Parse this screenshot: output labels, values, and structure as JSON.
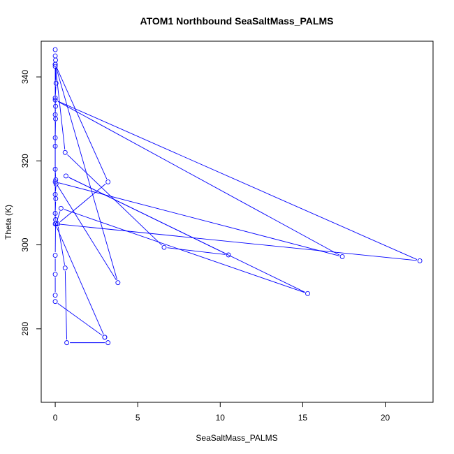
{
  "chart_data": {
    "type": "line",
    "title": "ATOM1 Northbound SeaSaltMass_PALMS",
    "xlabel": "SeaSaltMass_PALMS",
    "ylabel": "Theta (K)",
    "xlim": [
      -0.85,
      22.9
    ],
    "ylim": [
      262.5,
      348.5
    ],
    "x_ticks": [
      0,
      5,
      10,
      15,
      20
    ],
    "y_ticks": [
      280,
      300,
      320,
      340
    ],
    "grid": false,
    "legend": "none",
    "series_color": "#0000ff",
    "series": [
      {
        "marker": "open-circle",
        "points": [
          [
            0.0,
            346.5
          ],
          [
            0.0,
            345.0
          ],
          [
            0.02,
            344.0
          ],
          [
            0.0,
            343.0
          ],
          [
            0.0,
            342.5
          ],
          [
            0.05,
            338.5
          ],
          [
            0.0,
            335.0
          ],
          [
            0.02,
            333.0
          ],
          [
            0.0,
            331.0
          ],
          [
            0.02,
            330.0
          ],
          [
            0.0,
            325.5
          ],
          [
            0.0,
            323.5
          ],
          [
            0.0,
            318.0
          ],
          [
            0.03,
            315.5
          ],
          [
            0.05,
            314.5
          ],
          [
            0.0,
            312.0
          ],
          [
            0.03,
            311.0
          ],
          [
            0.0,
            307.5
          ],
          [
            0.02,
            306.0
          ],
          [
            0.0,
            297.5
          ],
          [
            0.0,
            293.0
          ],
          [
            0.0,
            288.0
          ],
          [
            0.0,
            286.5
          ],
          [
            3.0,
            278.0
          ],
          [
            3.2,
            276.7
          ],
          [
            0.7,
            276.7
          ],
          [
            0.6,
            294.5
          ],
          [
            0.15,
            305.0
          ],
          [
            3.2,
            315.0
          ],
          [
            0.0,
            343.0
          ],
          [
            3.8,
            291.0
          ],
          [
            0.0,
            315.0
          ],
          [
            17.4,
            297.2
          ],
          [
            0.0,
            334.5
          ],
          [
            22.1,
            296.2
          ],
          [
            0.05,
            305.0
          ],
          [
            0.35,
            308.7
          ],
          [
            15.3,
            288.4
          ],
          [
            0.65,
            316.4
          ],
          [
            10.5,
            297.6
          ],
          [
            6.6,
            299.4
          ],
          [
            0.6,
            322.0
          ],
          [
            0.0,
            343.0
          ],
          [
            0.0,
            305.0
          ],
          [
            3.0,
            278.0
          ]
        ]
      }
    ]
  }
}
